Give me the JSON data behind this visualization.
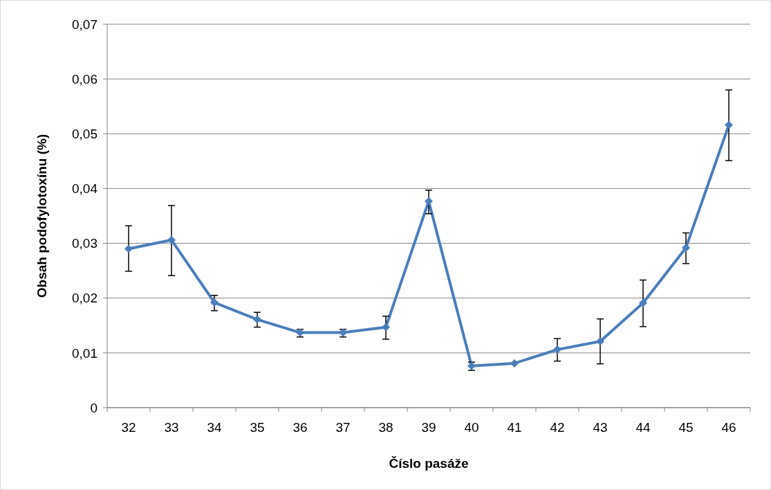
{
  "chart_data": {
    "type": "line",
    "xlabel": "Číslo pasáže",
    "ylabel": "Obsah podofylotoxínu (%)",
    "categories": [
      "32",
      "33",
      "34",
      "35",
      "36",
      "37",
      "38",
      "39",
      "40",
      "41",
      "42",
      "43",
      "44",
      "45",
      "46"
    ],
    "series": [
      {
        "color": "#4a7ebb",
        "values": [
          0.029,
          0.0306,
          0.0192,
          0.0161,
          0.0137,
          0.0137,
          0.0147,
          0.0377,
          0.0076,
          0.0081,
          0.0106,
          0.0121,
          0.0191,
          0.0292,
          0.0516
        ],
        "errors": [
          [
            0.0249,
            0.0332
          ],
          [
            0.0241,
            0.0369
          ],
          [
            0.0177,
            0.0205
          ],
          [
            0.0147,
            0.0174
          ],
          [
            0.0129,
            0.0143
          ],
          [
            0.0129,
            0.0143
          ],
          [
            0.0125,
            0.0167
          ],
          [
            0.0354,
            0.0397
          ],
          [
            0.0068,
            0.0083
          ],
          null,
          [
            0.0085,
            0.0126
          ],
          [
            0.008,
            0.0162
          ],
          [
            0.0148,
            0.0233
          ],
          [
            0.0263,
            0.0319
          ],
          [
            0.0451,
            0.058
          ]
        ]
      }
    ],
    "ylim": [
      0,
      0.07
    ],
    "yticks": [
      0,
      {
        "value": 0.01,
        "label": "0,01"
      },
      {
        "value": 0.02,
        "label": "0,02"
      },
      {
        "value": 0.03,
        "label": "0,03"
      },
      {
        "value": 0.04,
        "label": "0,04"
      },
      {
        "value": 0.05,
        "label": "0,05"
      },
      {
        "value": 0.06,
        "label": "0,06"
      },
      {
        "value": 0.07,
        "label": "0,07"
      }
    ],
    "grid": "y",
    "marker": "diamond",
    "line_style": "solid"
  }
}
